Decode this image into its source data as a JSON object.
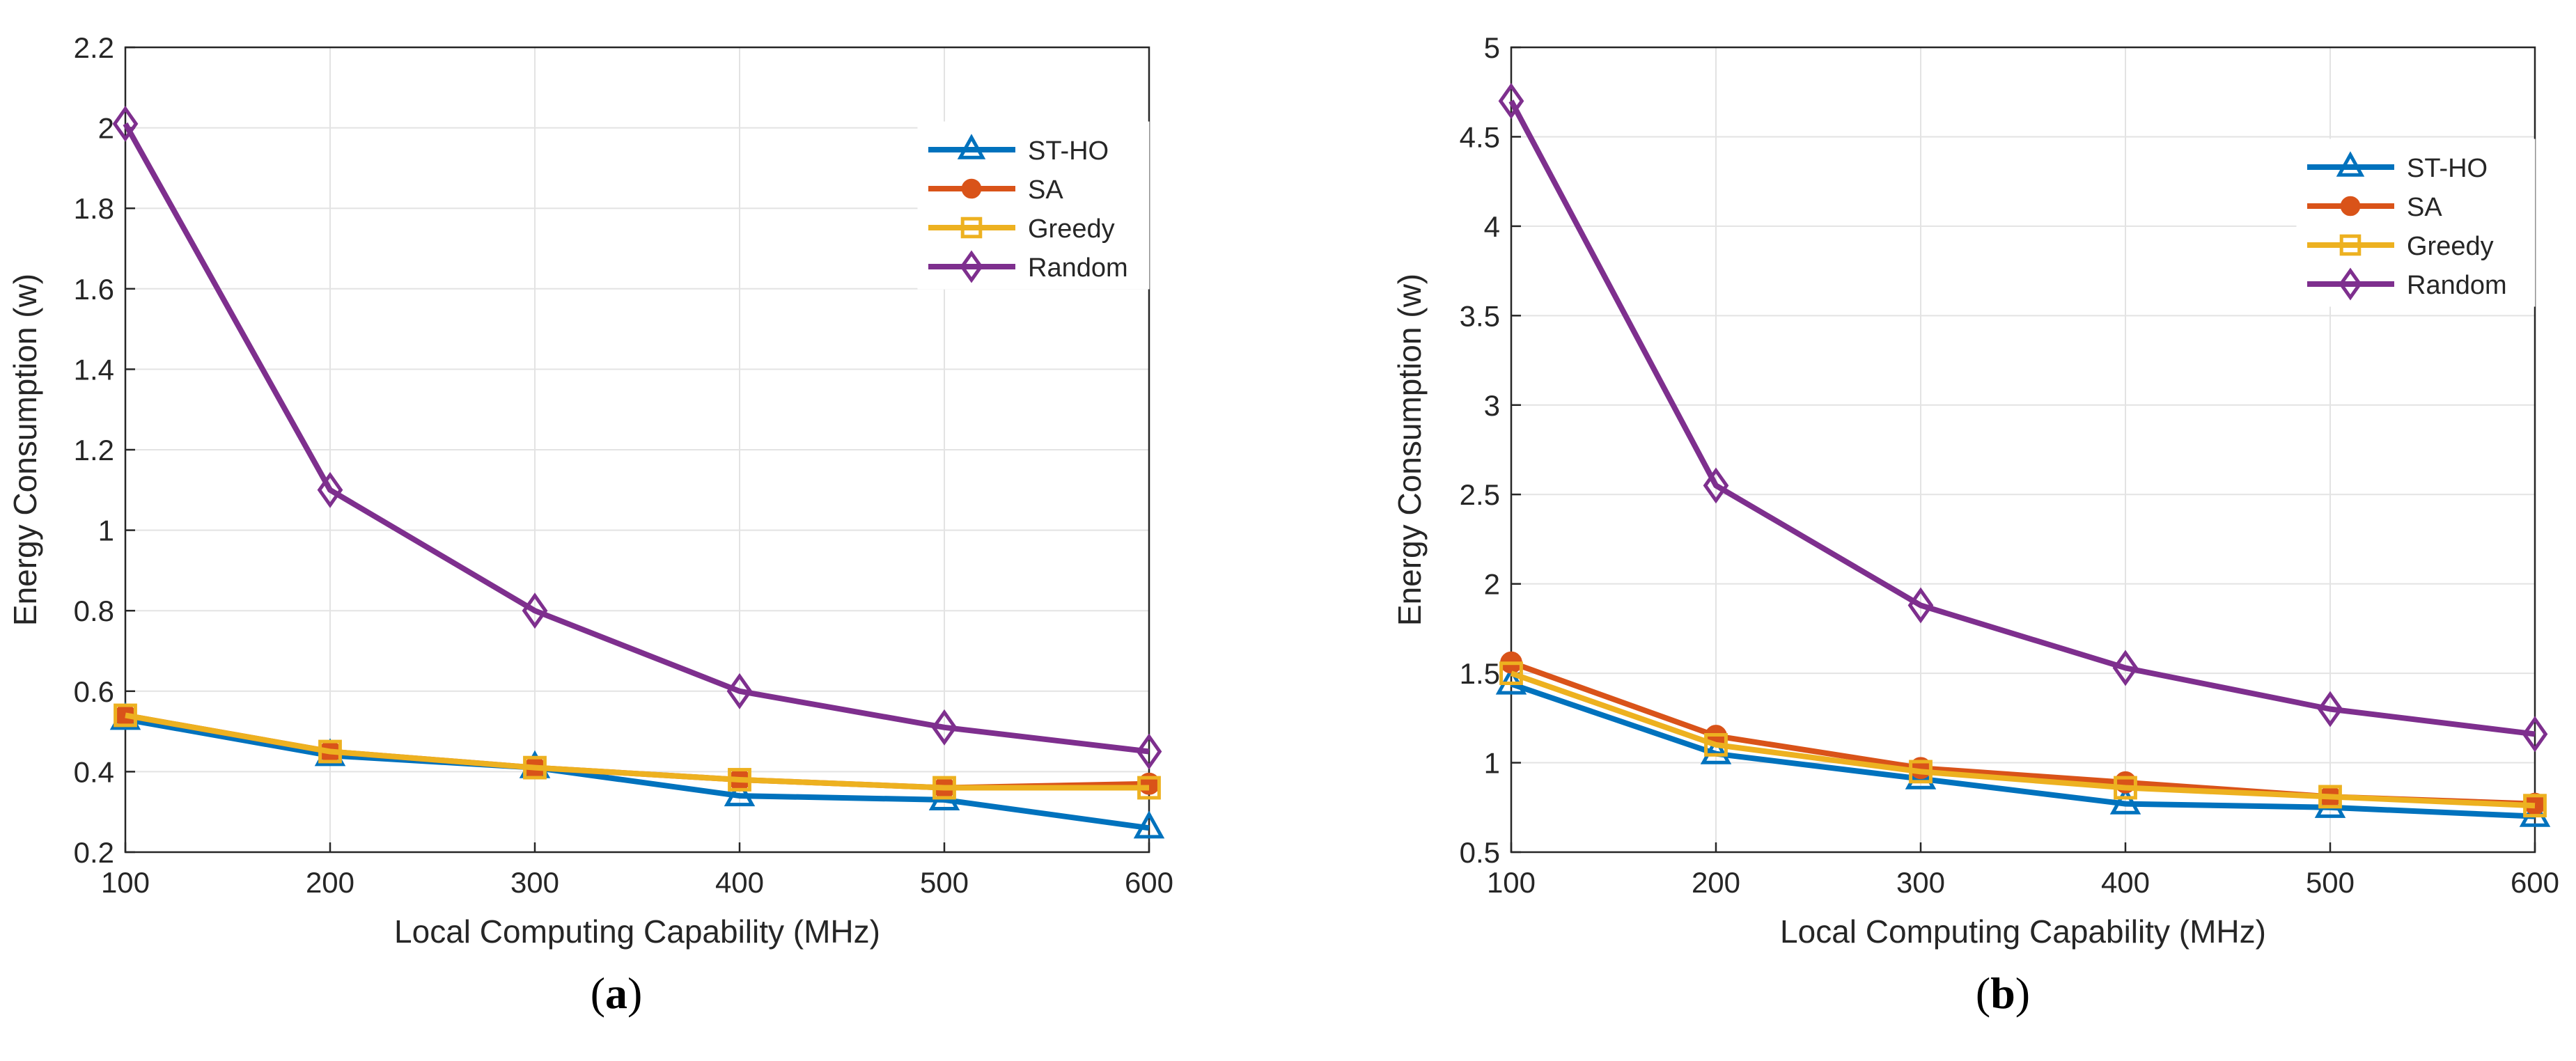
{
  "colors": {
    "ST-HO": "#0072BD",
    "SA": "#D95319",
    "Greedy": "#EDB120",
    "Random": "#7E2F8E",
    "grid": "#e3e3e3",
    "axis": "#262626"
  },
  "chart_data": [
    {
      "type": "line",
      "panel_label": "a",
      "xlabel": "Local Computing Capability (MHz)",
      "ylabel": "Energy Consumption (w)",
      "x": [
        100,
        200,
        300,
        400,
        500,
        600
      ],
      "xlim": [
        100,
        600
      ],
      "ylim": [
        0.2,
        2.2
      ],
      "xticks": [
        100,
        200,
        300,
        400,
        500,
        600
      ],
      "yticks": [
        0.2,
        0.4,
        0.6,
        0.8,
        1,
        1.2,
        1.4,
        1.6,
        1.8,
        2,
        2.2
      ],
      "grid": true,
      "legend_position": "top-right",
      "series": [
        {
          "name": "ST-HO",
          "marker": "triangle",
          "values": [
            0.53,
            0.44,
            0.41,
            0.34,
            0.33,
            0.26
          ]
        },
        {
          "name": "SA",
          "marker": "circle",
          "values": [
            0.54,
            0.45,
            0.41,
            0.38,
            0.36,
            0.37
          ]
        },
        {
          "name": "Greedy",
          "marker": "square",
          "values": [
            0.54,
            0.45,
            0.41,
            0.38,
            0.36,
            0.36
          ]
        },
        {
          "name": "Random",
          "marker": "diamond",
          "values": [
            2.01,
            1.1,
            0.8,
            0.6,
            0.51,
            0.45
          ]
        }
      ]
    },
    {
      "type": "line",
      "panel_label": "b",
      "xlabel": "Local Computing Capability (MHz)",
      "ylabel": "Energy Consumption (w)",
      "x": [
        100,
        200,
        300,
        400,
        500,
        600
      ],
      "xlim": [
        100,
        600
      ],
      "ylim": [
        0.5,
        5
      ],
      "xticks": [
        100,
        200,
        300,
        400,
        500,
        600
      ],
      "yticks": [
        0.5,
        1,
        1.5,
        2,
        2.5,
        3,
        3.5,
        4,
        4.5,
        5
      ],
      "grid": true,
      "legend_position": "top-right",
      "series": [
        {
          "name": "ST-HO",
          "marker": "triangle",
          "values": [
            1.44,
            1.05,
            0.91,
            0.77,
            0.75,
            0.7
          ]
        },
        {
          "name": "SA",
          "marker": "circle",
          "values": [
            1.56,
            1.15,
            0.97,
            0.89,
            0.81,
            0.77
          ]
        },
        {
          "name": "Greedy",
          "marker": "square",
          "values": [
            1.5,
            1.1,
            0.95,
            0.86,
            0.81,
            0.76
          ]
        },
        {
          "name": "Random",
          "marker": "diamond",
          "values": [
            4.7,
            2.55,
            1.88,
            1.53,
            1.3,
            1.16
          ]
        }
      ]
    }
  ]
}
